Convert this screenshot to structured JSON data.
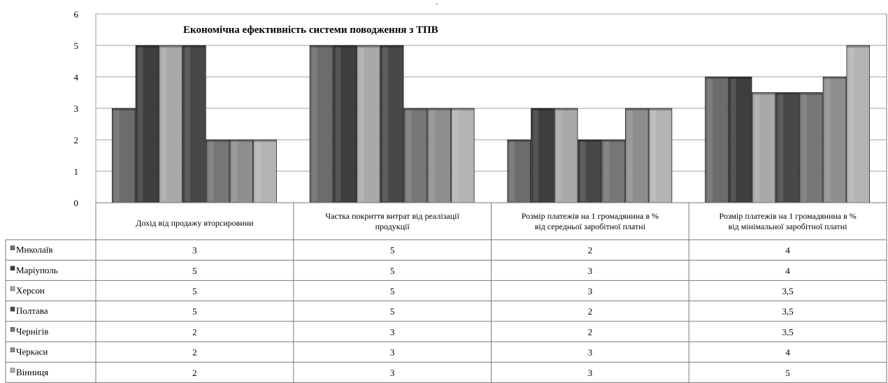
{
  "chart_data": {
    "type": "bar",
    "title": "Економічна ефективність системи поводження з ТПВ",
    "categories": [
      [
        "Дохід від продажу вторсировини"
      ],
      [
        "Частка покриття витрат від реалізації",
        "продукції"
      ],
      [
        "Розмір платежів на 1 громадянина в %",
        "від середньої заробітної платні"
      ],
      [
        "Розмір платежів на 1 громадянина в %",
        "від мінімальної заробітної платні"
      ]
    ],
    "series": [
      {
        "name": "Миколаїв",
        "values": [
          3,
          5,
          2,
          4
        ],
        "value_labels": [
          "3",
          "5",
          "2",
          "4"
        ],
        "color": "#6c6c6c"
      },
      {
        "name": "Маріуполь",
        "values": [
          5,
          5,
          3,
          4
        ],
        "value_labels": [
          "5",
          "5",
          "3",
          "4"
        ],
        "color": "#3e3e3e"
      },
      {
        "name": "Херсон",
        "values": [
          5,
          5,
          3,
          3.5
        ],
        "value_labels": [
          "5",
          "5",
          "3",
          "3,5"
        ],
        "color": "#a9a9a9"
      },
      {
        "name": "Полтава",
        "values": [
          5,
          5,
          2,
          3.5
        ],
        "value_labels": [
          "5",
          "5",
          "2",
          "3,5"
        ],
        "color": "#484848"
      },
      {
        "name": "Чернігів",
        "values": [
          2,
          3,
          2,
          3.5
        ],
        "value_labels": [
          "2",
          "3",
          "2",
          "3,5"
        ],
        "color": "#767676"
      },
      {
        "name": "Черкаси",
        "values": [
          2,
          3,
          3,
          4
        ],
        "value_labels": [
          "2",
          "3",
          "3",
          "4"
        ],
        "color": "#8e8e8e"
      },
      {
        "name": "Вінниця",
        "values": [
          2,
          3,
          3,
          5
        ],
        "value_labels": [
          "2",
          "3",
          "3",
          "5"
        ],
        "color": "#b4b4b4"
      }
    ],
    "ylim": [
      0,
      6
    ],
    "yticks": [
      0,
      1,
      2,
      3,
      4,
      5,
      6
    ],
    "grid": true,
    "legend": "data table below chart"
  }
}
